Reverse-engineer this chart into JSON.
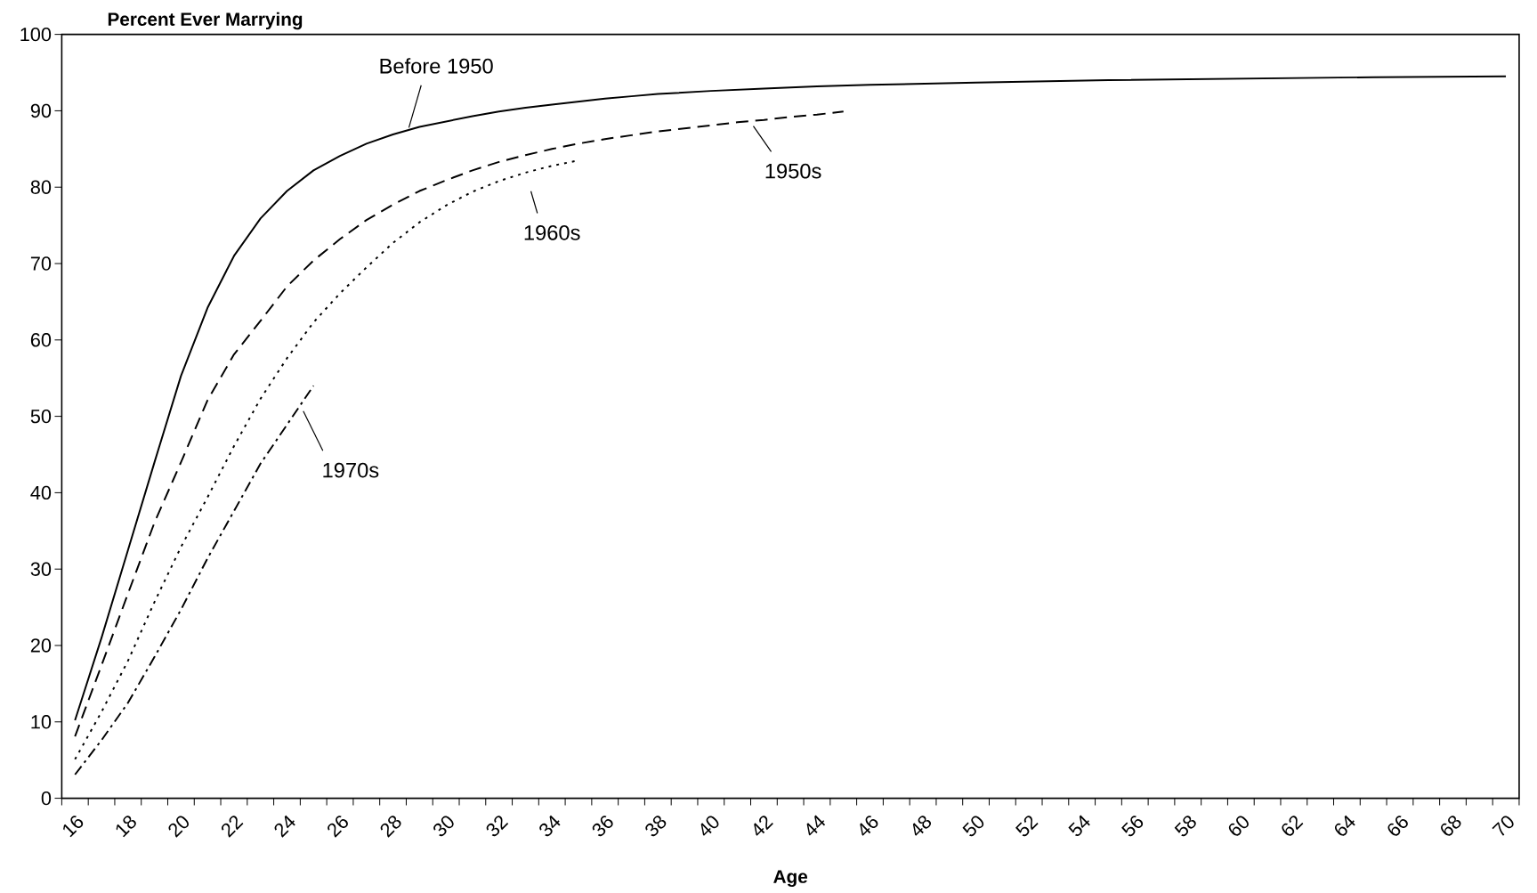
{
  "chart_data": {
    "type": "line",
    "ylabel": "Percent Ever Marrying",
    "xlabel": "Age",
    "xlim": [
      16,
      71
    ],
    "ylim": [
      0,
      100
    ],
    "xticks": [
      16,
      {
        "value": 17,
        "label": null
      },
      18,
      {
        "value": 19,
        "label": null
      },
      20,
      {
        "value": 21,
        "label": null
      },
      22,
      {
        "value": 23,
        "label": null
      },
      24,
      {
        "value": 25,
        "label": null
      },
      26,
      {
        "value": 27,
        "label": null
      },
      28,
      {
        "value": 29,
        "label": null
      },
      30,
      {
        "value": 31,
        "label": null
      },
      32,
      {
        "value": 33,
        "label": null
      },
      34,
      {
        "value": 35,
        "label": null
      },
      36,
      {
        "value": 37,
        "label": null
      },
      38,
      {
        "value": 39,
        "label": null
      },
      40,
      {
        "value": 41,
        "label": null
      },
      42,
      {
        "value": 43,
        "label": null
      },
      44,
      {
        "value": 45,
        "label": null
      },
      46,
      {
        "value": 47,
        "label": null
      },
      48,
      {
        "value": 49,
        "label": null
      },
      50,
      {
        "value": 51,
        "label": null
      },
      52,
      {
        "value": 53,
        "label": null
      },
      54,
      {
        "value": 55,
        "label": null
      },
      56,
      {
        "value": 57,
        "label": null
      },
      58,
      {
        "value": 59,
        "label": null
      },
      60,
      {
        "value": 61,
        "label": null
      },
      62,
      {
        "value": 63,
        "label": null
      },
      64,
      {
        "value": 65,
        "label": null
      },
      66,
      {
        "value": 67,
        "label": null
      },
      68,
      {
        "value": 69,
        "label": null
      },
      70,
      {
        "value": 71,
        "label": null
      }
    ],
    "yticks": [
      0,
      10,
      20,
      30,
      40,
      50,
      60,
      70,
      80,
      90,
      100
    ],
    "series": [
      {
        "color": "#000000",
        "line_style": "solid",
        "x": [
          16.5,
          17.5,
          18.5,
          19.5,
          20.5,
          21.5,
          22.5,
          23.5,
          24.5,
          25.5,
          26.5,
          27.5,
          28.5,
          29.5,
          30.5,
          31.5,
          32.5,
          33.5,
          34.5,
          35.5,
          36.5,
          37.5,
          38.5,
          39.5,
          40.5,
          42.5,
          44.5,
          46.5,
          50.5,
          55.5,
          60.5,
          65.5,
          70.5
        ],
        "values": [
          10.2,
          21,
          32.5,
          44,
          55.3,
          64.2,
          71.0,
          75.9,
          79.5,
          82.2,
          84.1,
          85.7,
          86.9,
          87.9,
          88.6,
          89.3,
          89.9,
          90.4,
          90.8,
          91.2,
          91.6,
          91.9,
          92.2,
          92.4,
          92.6,
          92.9,
          93.2,
          93.4,
          93.7,
          94.0,
          94.2,
          94.4,
          94.5
        ]
      },
      {
        "color": "#000000",
        "line_style": "dashed",
        "x": [
          16.5,
          17.5,
          18.5,
          19.5,
          20.5,
          21.5,
          22.5,
          23.5,
          24.5,
          25.5,
          26.5,
          27.5,
          28.5,
          29.5,
          30.5,
          31.5,
          32.5,
          33.5,
          34.5,
          35.5,
          36.5,
          37.5,
          38.5,
          39.5,
          40.5,
          41.5,
          42.5,
          43.5,
          44.5,
          45.5
        ],
        "values": [
          8.1,
          17.4,
          26.8,
          36.1,
          44.0,
          52.1,
          58.1,
          62.5,
          67.0,
          70.4,
          73.2,
          75.7,
          77.7,
          79.5,
          80.9,
          82.2,
          83.3,
          84.2,
          85.0,
          85.7,
          86.3,
          86.8,
          87.3,
          87.7,
          88.1,
          88.5,
          88.8,
          89.2,
          89.5,
          89.9
        ]
      },
      {
        "color": "#000000",
        "line_style": "dotted",
        "x": [
          16.5,
          17.5,
          18.5,
          19.5,
          20.5,
          21.5,
          22.5,
          23.5,
          24.5,
          25.5,
          26.5,
          27.5,
          28.5,
          29.5,
          30.5,
          31.5,
          32.5,
          33.5,
          34.5,
          35.5
        ],
        "values": [
          5.1,
          11.3,
          18.0,
          25.7,
          32.9,
          39.4,
          46.1,
          52.3,
          57.6,
          62.3,
          66.1,
          69.5,
          72.7,
          75.4,
          77.6,
          79.4,
          80.8,
          81.9,
          82.8,
          83.5
        ]
      },
      {
        "color": "#000000",
        "line_style": "dashdot",
        "x": [
          16.5,
          17.5,
          18.5,
          19.5,
          20.5,
          21.5,
          22.5,
          23.5,
          24.5,
          25.5
        ],
        "values": [
          3.1,
          7.6,
          12.5,
          18.5,
          24.7,
          31.4,
          37.6,
          43.8,
          48.9,
          54.0
        ]
      }
    ],
    "annotations": [
      {
        "text": "Before 1950",
        "x": 29.1,
        "y": 87.8
      },
      {
        "text": "1950s",
        "x": 42.1,
        "y": 88.0
      },
      {
        "text": "1960s",
        "x": 33.5,
        "y": 81.9
      },
      {
        "text": "1970s",
        "x": 25.0,
        "y": 51.5
      }
    ]
  }
}
